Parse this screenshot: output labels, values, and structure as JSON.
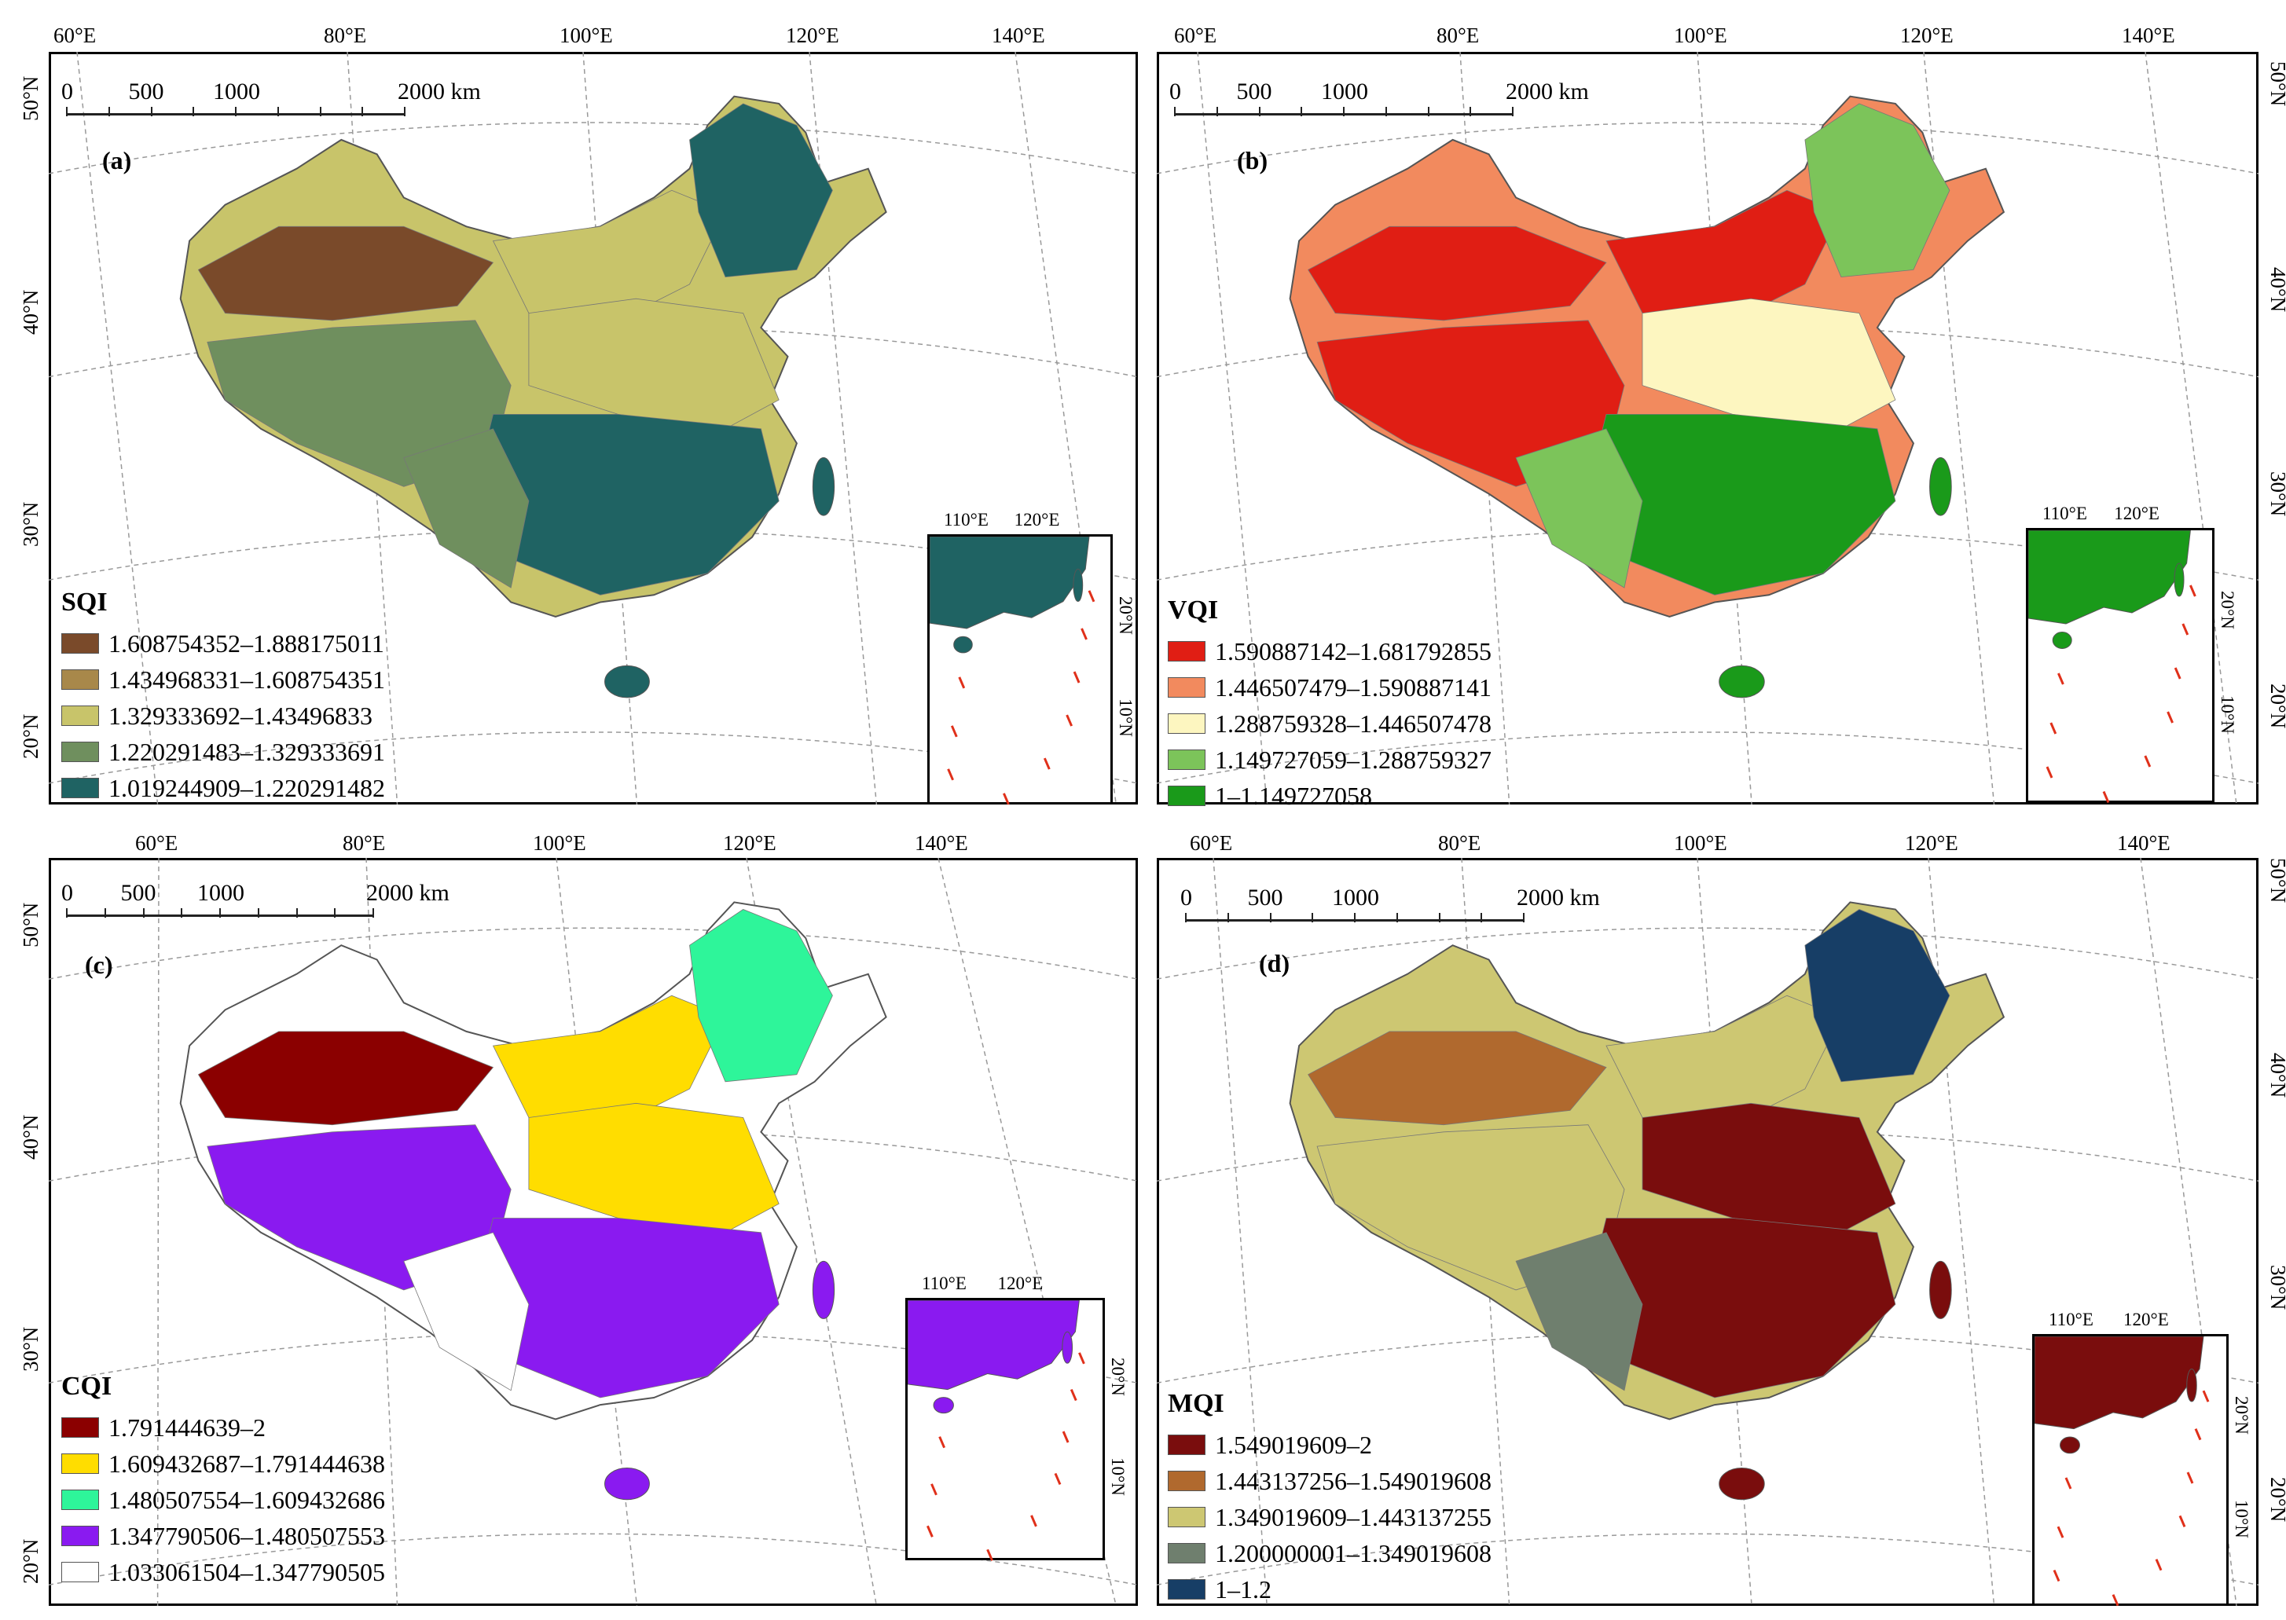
{
  "panels": [
    {
      "key": "a",
      "panel_label": "(a)",
      "legend_title": "SQI",
      "scale": {
        "labels": [
          "0",
          "500",
          "1000",
          "2000 km"
        ]
      },
      "lon_labels": [
        "60°E",
        "80°E",
        "100°E",
        "120°E",
        "140°E"
      ],
      "lat_labels": [
        "50°N",
        "40°N",
        "30°N",
        "20°N"
      ],
      "inset": {
        "lon_labels": [
          "110°E",
          "120°E"
        ],
        "lat_labels": [
          "20°N",
          "10°N"
        ]
      },
      "classes": [
        {
          "label": "1.608754352–1.888175011",
          "color": "#7a4a2a"
        },
        {
          "label": "1.434968331–1.608754351",
          "color": "#a8884a"
        },
        {
          "label": "1.329333692–1.43496833",
          "color": "#c8c46a"
        },
        {
          "label": "1.220291483–1.329333691",
          "color": "#6f8f5e"
        },
        {
          "label": "1.019244909–1.220291482",
          "color": "#1f6363"
        }
      ]
    },
    {
      "key": "b",
      "panel_label": "(b)",
      "legend_title": "VQI",
      "scale": {
        "labels": [
          "0",
          "500",
          "1000",
          "2000 km"
        ]
      },
      "lon_labels": [
        "60°E",
        "80°E",
        "100°E",
        "120°E",
        "140°E"
      ],
      "lat_labels": [
        "50°N",
        "40°N",
        "30°N",
        "20°N"
      ],
      "inset": {
        "lon_labels": [
          "110°E",
          "120°E"
        ],
        "lat_labels": [
          "20°N",
          "10°N"
        ]
      },
      "classes": [
        {
          "label": "1.590887142–1.681792855",
          "color": "#e01e14"
        },
        {
          "label": "1.446507479–1.590887141",
          "color": "#f28a5e"
        },
        {
          "label": "1.288759328–1.446507478",
          "color": "#fdf6c0"
        },
        {
          "label": "1.149727059–1.288759327",
          "color": "#7cc45a"
        },
        {
          "label": "1–1.149727058",
          "color": "#1a9a1a"
        }
      ]
    },
    {
      "key": "c",
      "panel_label": "(c)",
      "legend_title": "CQI",
      "scale": {
        "labels": [
          "0",
          "500",
          "1000",
          "2000 km"
        ]
      },
      "lon_labels": [
        "60°E",
        "80°E",
        "100°E",
        "120°E",
        "140°E"
      ],
      "lat_labels": [
        "50°N",
        "40°N",
        "30°N",
        "20°N"
      ],
      "inset": {
        "lon_labels": [
          "110°E",
          "120°E"
        ],
        "lat_labels": [
          "20°N",
          "10°N"
        ]
      },
      "classes": [
        {
          "label": "1.791444639–2",
          "color": "#8b0000"
        },
        {
          "label": "1.609432687–1.791444638",
          "color": "#ffdd00"
        },
        {
          "label": "1.480507554–1.609432686",
          "color": "#2ef59a"
        },
        {
          "label": "1.347790506–1.480507553",
          "color": "#8a1af0"
        },
        {
          "label": "1.033061504–1.347790505",
          "color": "#ffffff"
        }
      ]
    },
    {
      "key": "d",
      "panel_label": "(d)",
      "legend_title": "MQI",
      "scale": {
        "labels": [
          "0",
          "500",
          "1000",
          "2000 km"
        ]
      },
      "lon_labels": [
        "60°E",
        "80°E",
        "100°E",
        "120°E",
        "140°E"
      ],
      "lat_labels": [
        "50°N",
        "40°N",
        "30°N",
        "20°N"
      ],
      "inset": {
        "lon_labels": [
          "110°E",
          "120°E"
        ],
        "lat_labels": [
          "20°N",
          "10°N"
        ]
      },
      "classes": [
        {
          "label": "1.549019609–2",
          "color": "#7a0d0d"
        },
        {
          "label": "1.443137256–1.549019608",
          "color": "#b0692e"
        },
        {
          "label": "1.349019609–1.443137255",
          "color": "#cdc772"
        },
        {
          "label": "1.200000001–1.349019608",
          "color": "#6f7f6e"
        },
        {
          "label": "1–1.2",
          "color": "#173e66"
        }
      ]
    }
  ]
}
